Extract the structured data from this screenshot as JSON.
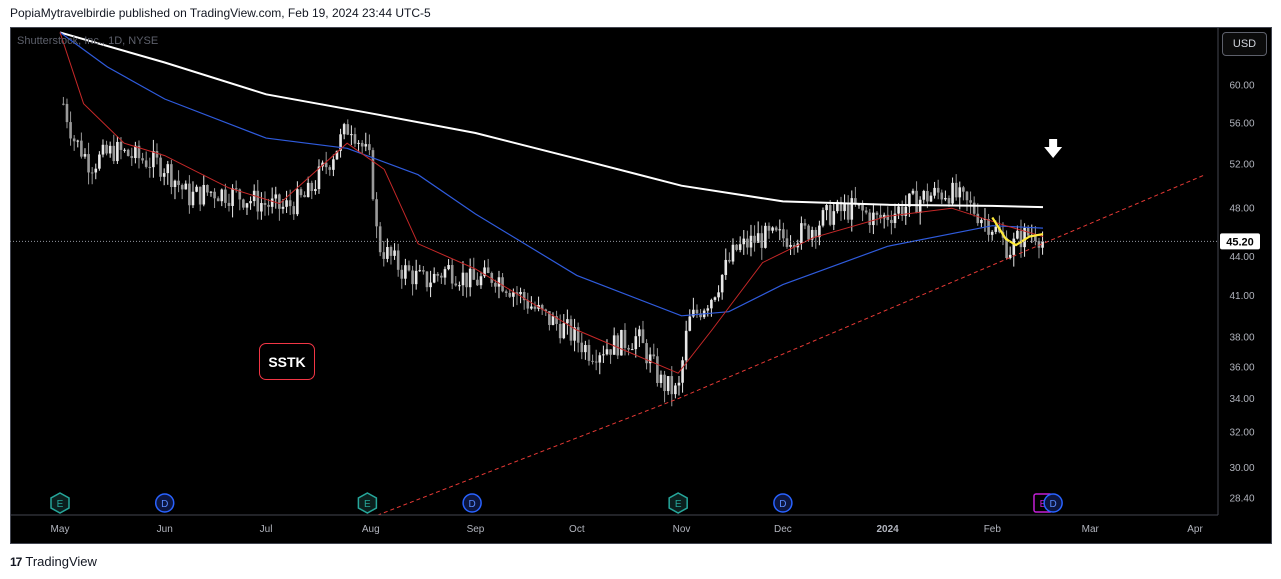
{
  "header": {
    "text": "PopiaMytravelbirdie published on TradingView.com, Feb 19, 2024 23:44 UTC-5"
  },
  "symbol": {
    "label": "Shutterstock, Inc., 1D, NYSE"
  },
  "currency_button": "USD",
  "badge": "SSTK",
  "footer": {
    "logo": "17",
    "brand": "TradingView"
  },
  "colors": {
    "background": "#000000",
    "up_candle": "#e8e8e8",
    "down_candle": "#9a9a9a",
    "sma200": "#ffffff",
    "sma50": "#2f5bdc",
    "ema20": "#c62828",
    "trendline": "#e53935",
    "yellow_line": "#ffeb3b",
    "price_label_bg": "#ffffff",
    "badge_border": "#f23645"
  },
  "chart_data": {
    "type": "candlestick",
    "y_scale": "log",
    "ylim": [
      27.4,
      67.0
    ],
    "y_ticks": [
      "60.00",
      "56.00",
      "52.00",
      "48.00",
      "44.00",
      "41.00",
      "38.00",
      "36.00",
      "34.00",
      "32.00",
      "30.00",
      "28.40"
    ],
    "x_ticks": [
      {
        "label": "May",
        "date": "2023-05-01"
      },
      {
        "label": "Jun",
        "date": "2023-06-01"
      },
      {
        "label": "Jul",
        "date": "2023-07-01"
      },
      {
        "label": "Aug",
        "date": "2023-08-01"
      },
      {
        "label": "Sep",
        "date": "2023-09-01"
      },
      {
        "label": "Oct",
        "date": "2023-10-01"
      },
      {
        "label": "Nov",
        "date": "2023-11-01"
      },
      {
        "label": "Dec",
        "date": "2023-12-01"
      },
      {
        "label": "2024",
        "date": "2024-01-01"
      },
      {
        "label": "Feb",
        "date": "2024-02-01"
      },
      {
        "label": "Mar",
        "date": "2024-03-01"
      },
      {
        "label": "Apr",
        "date": "2024-04-01"
      }
    ],
    "last_price": "45.20",
    "last_price_value": 45.2,
    "series": [
      {
        "name": "price",
        "values_sampled": [
          {
            "date": "2023-05-02",
            "close": 58.0
          },
          {
            "date": "2023-05-05",
            "close": 54.5
          },
          {
            "date": "2023-05-10",
            "close": 52.0
          },
          {
            "date": "2023-05-17",
            "close": 53.3
          },
          {
            "date": "2023-05-25",
            "close": 52.5
          },
          {
            "date": "2023-06-01",
            "close": 51.8
          },
          {
            "date": "2023-06-08",
            "close": 49.0
          },
          {
            "date": "2023-06-15",
            "close": 49.5
          },
          {
            "date": "2023-06-22",
            "close": 49.2
          },
          {
            "date": "2023-06-29",
            "close": 48.5
          },
          {
            "date": "2023-07-06",
            "close": 48.0
          },
          {
            "date": "2023-07-13",
            "close": 49.0
          },
          {
            "date": "2023-07-20",
            "close": 52.5
          },
          {
            "date": "2023-07-26",
            "close": 56.0
          },
          {
            "date": "2023-08-01",
            "close": 52.0
          },
          {
            "date": "2023-08-03",
            "close": 45.0
          },
          {
            "date": "2023-08-10",
            "close": 43.0
          },
          {
            "date": "2023-08-17",
            "close": 42.0
          },
          {
            "date": "2023-08-24",
            "close": 43.0
          },
          {
            "date": "2023-08-31",
            "close": 42.0
          },
          {
            "date": "2023-09-07",
            "close": 42.5
          },
          {
            "date": "2023-09-14",
            "close": 41.0
          },
          {
            "date": "2023-09-21",
            "close": 39.5
          },
          {
            "date": "2023-09-28",
            "close": 38.5
          },
          {
            "date": "2023-10-05",
            "close": 37.0
          },
          {
            "date": "2023-10-12",
            "close": 37.5
          },
          {
            "date": "2023-10-19",
            "close": 38.0
          },
          {
            "date": "2023-10-26",
            "close": 35.0
          },
          {
            "date": "2023-10-31",
            "close": 34.3
          },
          {
            "date": "2023-11-03",
            "close": 39.0
          },
          {
            "date": "2023-11-10",
            "close": 41.0
          },
          {
            "date": "2023-11-17",
            "close": 44.5
          },
          {
            "date": "2023-11-24",
            "close": 45.5
          },
          {
            "date": "2023-12-01",
            "close": 45.5
          },
          {
            "date": "2023-12-08",
            "close": 46.0
          },
          {
            "date": "2023-12-15",
            "close": 47.5
          },
          {
            "date": "2023-12-22",
            "close": 48.0
          },
          {
            "date": "2023-12-29",
            "close": 47.0
          },
          {
            "date": "2024-01-05",
            "close": 48.0
          },
          {
            "date": "2024-01-12",
            "close": 49.0
          },
          {
            "date": "2024-01-19",
            "close": 49.5
          },
          {
            "date": "2024-01-26",
            "close": 48.0
          },
          {
            "date": "2024-02-01",
            "close": 46.5
          },
          {
            "date": "2024-02-06",
            "close": 44.5
          },
          {
            "date": "2024-02-09",
            "close": 45.5
          },
          {
            "date": "2024-02-14",
            "close": 46.0
          },
          {
            "date": "2024-02-16",
            "close": 45.2
          }
        ]
      },
      {
        "name": "SMA200",
        "values_sampled": [
          {
            "date": "2023-05-01",
            "value": 66.0
          },
          {
            "date": "2023-06-01",
            "value": 62.5
          },
          {
            "date": "2023-07-01",
            "value": 59.0
          },
          {
            "date": "2023-08-01",
            "value": 57.0
          },
          {
            "date": "2023-09-01",
            "value": 55.0
          },
          {
            "date": "2023-10-01",
            "value": 52.5
          },
          {
            "date": "2023-11-01",
            "value": 50.0
          },
          {
            "date": "2023-12-01",
            "value": 48.6
          },
          {
            "date": "2024-01-01",
            "value": 48.3
          },
          {
            "date": "2024-02-01",
            "value": 48.2
          },
          {
            "date": "2024-02-16",
            "value": 48.1
          }
        ]
      },
      {
        "name": "SMA50",
        "values_sampled": [
          {
            "date": "2023-05-01",
            "value": 66.0
          },
          {
            "date": "2023-05-15",
            "value": 62.0
          },
          {
            "date": "2023-06-01",
            "value": 58.5
          },
          {
            "date": "2023-07-01",
            "value": 54.5
          },
          {
            "date": "2023-07-25",
            "value": 53.5
          },
          {
            "date": "2023-08-15",
            "value": 51.0
          },
          {
            "date": "2023-09-01",
            "value": 47.5
          },
          {
            "date": "2023-10-01",
            "value": 42.5
          },
          {
            "date": "2023-11-01",
            "value": 39.5
          },
          {
            "date": "2023-11-15",
            "value": 39.8
          },
          {
            "date": "2023-12-01",
            "value": 41.8
          },
          {
            "date": "2024-01-01",
            "value": 44.8
          },
          {
            "date": "2024-02-01",
            "value": 46.5
          },
          {
            "date": "2024-02-16",
            "value": 46.3
          }
        ]
      },
      {
        "name": "EMA20",
        "values_sampled": [
          {
            "date": "2023-05-01",
            "value": 66.0
          },
          {
            "date": "2023-05-08",
            "value": 58.0
          },
          {
            "date": "2023-05-20",
            "value": 54.0
          },
          {
            "date": "2023-06-01",
            "value": 52.8
          },
          {
            "date": "2023-06-20",
            "value": 49.8
          },
          {
            "date": "2023-07-05",
            "value": 48.4
          },
          {
            "date": "2023-07-25",
            "value": 54.0
          },
          {
            "date": "2023-08-05",
            "value": 51.5
          },
          {
            "date": "2023-08-15",
            "value": 45.0
          },
          {
            "date": "2023-09-01",
            "value": 43.0
          },
          {
            "date": "2023-10-01",
            "value": 38.5
          },
          {
            "date": "2023-10-31",
            "value": 35.6
          },
          {
            "date": "2023-11-10",
            "value": 38.5
          },
          {
            "date": "2023-11-25",
            "value": 43.5
          },
          {
            "date": "2023-12-10",
            "value": 45.5
          },
          {
            "date": "2024-01-01",
            "value": 47.3
          },
          {
            "date": "2024-01-20",
            "value": 48.0
          },
          {
            "date": "2024-02-05",
            "value": 46.5
          },
          {
            "date": "2024-02-16",
            "value": 45.6
          }
        ]
      },
      {
        "name": "trendline",
        "values": [
          {
            "date": "2023-08-01",
            "value": 27.4
          },
          {
            "date": "2023-10-31",
            "value": 34.0
          },
          {
            "date": "2024-04-04",
            "value": 51.0
          }
        ]
      }
    ],
    "events": [
      {
        "type": "E",
        "date": "2023-05-01"
      },
      {
        "type": "D",
        "date": "2023-06-01"
      },
      {
        "type": "E",
        "date": "2023-07-31"
      },
      {
        "type": "D",
        "date": "2023-08-31"
      },
      {
        "type": "E",
        "date": "2023-10-31"
      },
      {
        "type": "D",
        "date": "2023-12-01"
      },
      {
        "type": "E",
        "date": "2024-02-16"
      },
      {
        "type": "D",
        "date": "2024-02-19"
      }
    ],
    "arrow_date": "2024-02-19",
    "grid": false,
    "legend": "none"
  }
}
